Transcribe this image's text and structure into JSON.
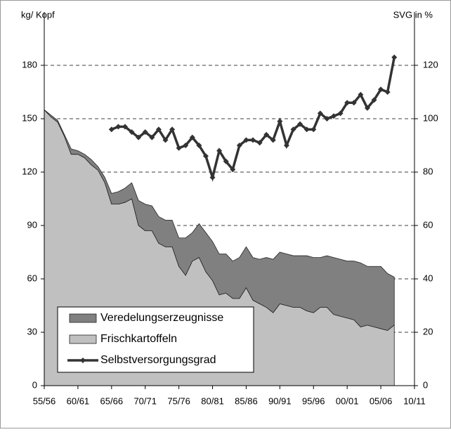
{
  "chart_data": {
    "type": "area",
    "ylabel": "kg/ Kopf",
    "y2label": "SVG in %",
    "categories": [
      "55/56",
      null,
      null,
      null,
      null,
      "60/61",
      null,
      null,
      null,
      null,
      "65/66",
      null,
      null,
      null,
      null,
      "70/71",
      null,
      null,
      null,
      null,
      "75/76",
      null,
      null,
      null,
      null,
      "80/81",
      null,
      null,
      null,
      null,
      "85/86",
      null,
      null,
      null,
      null,
      "90/91",
      null,
      null,
      null,
      null,
      "95/96",
      null,
      null,
      null,
      null,
      "00/01",
      null,
      null,
      null,
      null,
      "05/06",
      null,
      null,
      null,
      null,
      "10/11"
    ],
    "series": [
      {
        "name": "Veredelungserzeugnisse",
        "type": "area",
        "color": "#808080",
        "values": [
          0,
          1,
          1,
          1,
          3,
          2,
          2,
          3,
          2,
          3,
          6,
          7,
          8,
          9,
          14,
          15,
          14,
          15,
          15,
          15,
          16,
          21,
          16,
          19,
          22,
          22,
          23,
          22,
          21,
          23,
          23,
          24,
          25,
          28,
          30,
          29,
          29,
          29,
          29,
          31,
          31,
          28,
          29,
          32,
          32,
          32,
          33,
          36,
          33,
          34,
          35,
          32,
          27,
          null,
          null,
          null
        ]
      },
      {
        "name": "Frischkartoffeln",
        "type": "area",
        "color": "#c0c0c0",
        "values": [
          155,
          151,
          148,
          140,
          130,
          130,
          128,
          124,
          121,
          114,
          102,
          102,
          103,
          105,
          90,
          87,
          87,
          80,
          78,
          78,
          67,
          62,
          70,
          72,
          64,
          59,
          51,
          52,
          49,
          49,
          55,
          48,
          46,
          44,
          41,
          46,
          45,
          44,
          44,
          42,
          41,
          44,
          44,
          40,
          39,
          38,
          37,
          33,
          34,
          33,
          32,
          31,
          34,
          null,
          null,
          null
        ]
      },
      {
        "name": "Selbstversorgungsgrad",
        "type": "line",
        "axis": "y2",
        "color": "#333333",
        "values": [
          null,
          null,
          null,
          null,
          null,
          null,
          null,
          null,
          null,
          null,
          96,
          97,
          97,
          95,
          93,
          95,
          93,
          96,
          92,
          96,
          89,
          90,
          93,
          90,
          86,
          78,
          88,
          84,
          81,
          90,
          92,
          92,
          91,
          94,
          92,
          99,
          90,
          96,
          98,
          96,
          96,
          102,
          100,
          101,
          102,
          106,
          106,
          109,
          104,
          107,
          111,
          110,
          123,
          null,
          null,
          null
        ]
      }
    ],
    "ylim": [
      0,
      210
    ],
    "yticks": [
      0,
      30,
      60,
      90,
      120,
      150,
      180
    ],
    "y2lim": [
      0,
      140
    ],
    "y2ticks": [
      0,
      20,
      40,
      60,
      80,
      100,
      120
    ],
    "grid": true,
    "legend": "lower left"
  }
}
